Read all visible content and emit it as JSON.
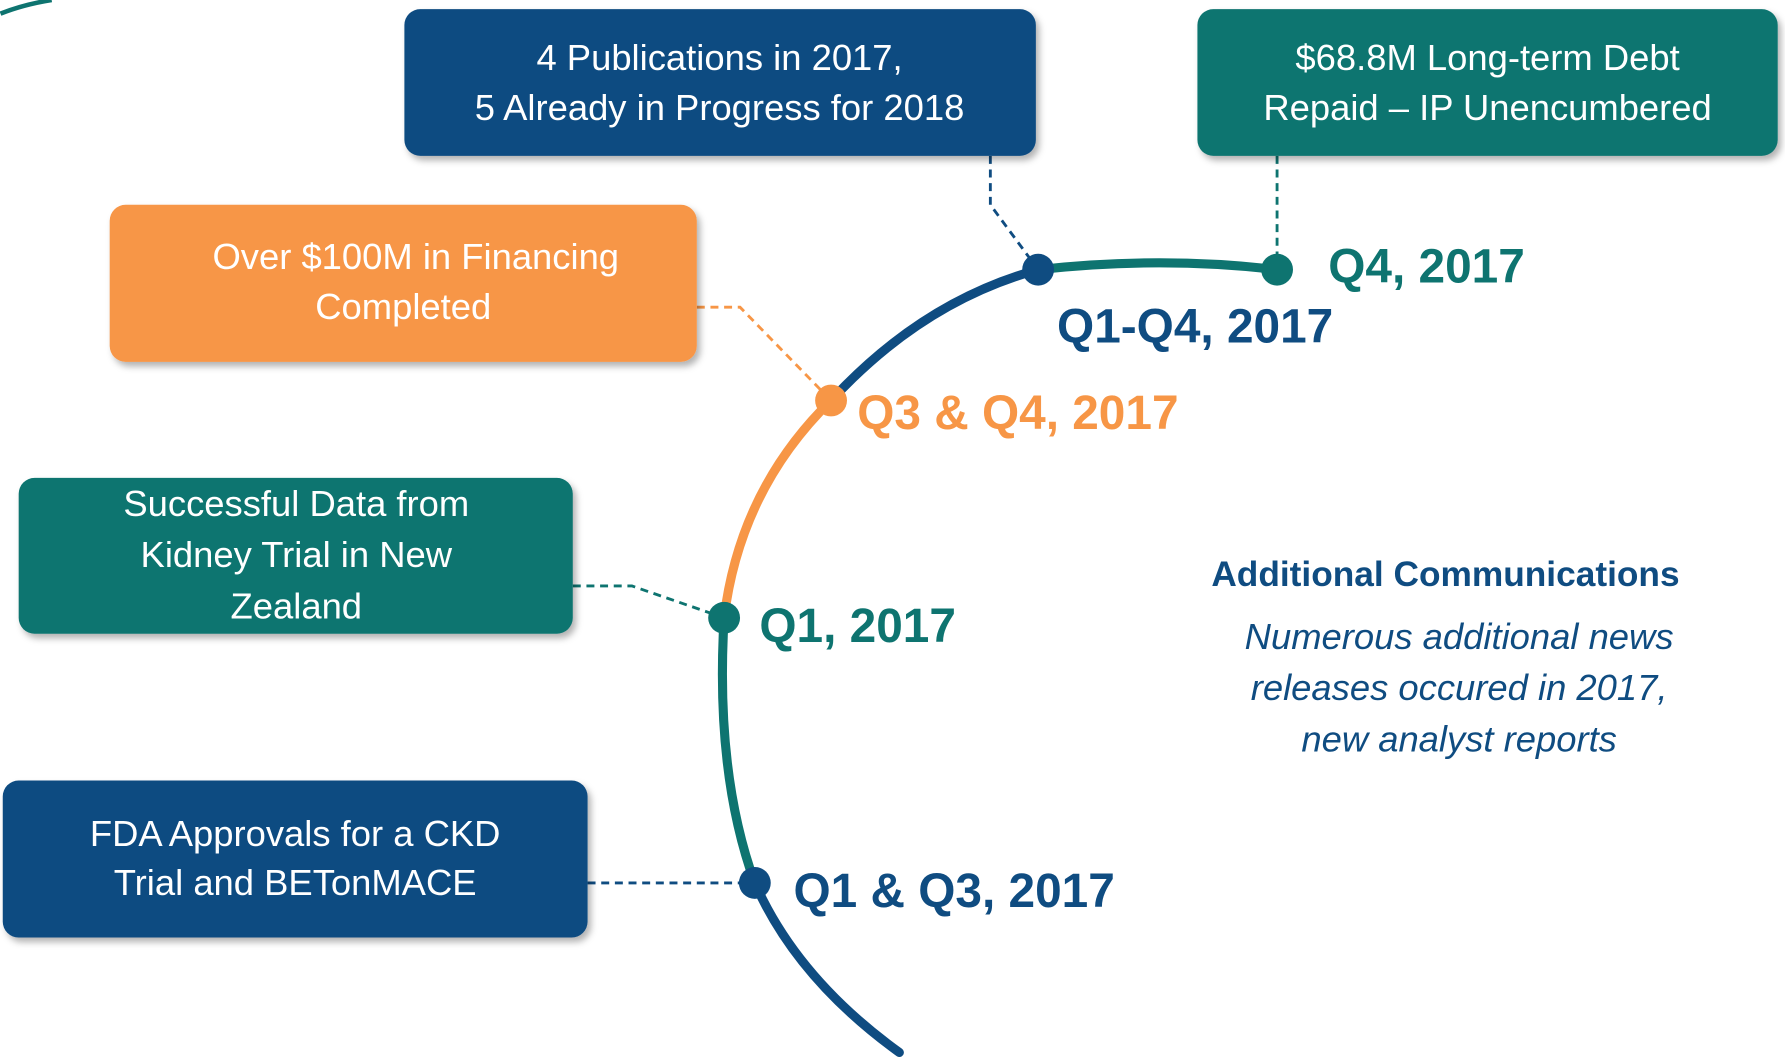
{
  "milestones": [
    {
      "lines": [
        "4 Publications in 2017,",
        "5 Already in Progress for 2018"
      ],
      "date": "Q1-Q4, 2017"
    },
    {
      "lines": [
        "$68.8M Long-term Debt",
        "Repaid – IP Unencumbered"
      ],
      "date": "Q4, 2017"
    },
    {
      "lines": [
        "Over $100M in Financing",
        "Completed"
      ],
      "date": "Q3 & Q4, 2017"
    },
    {
      "lines": [
        "Successful Data from",
        "Kidney Trial in New",
        "Zealand"
      ],
      "date": "Q1, 2017"
    },
    {
      "lines": [
        "FDA Approvals for a CKD",
        "Trial and BETonMACE"
      ],
      "date": "Q1 & Q3, 2017"
    }
  ],
  "additional": {
    "title": "Additional Communications",
    "lines": [
      "Numerous additional news",
      "releases occured in 2017,",
      "new analyst reports"
    ]
  }
}
